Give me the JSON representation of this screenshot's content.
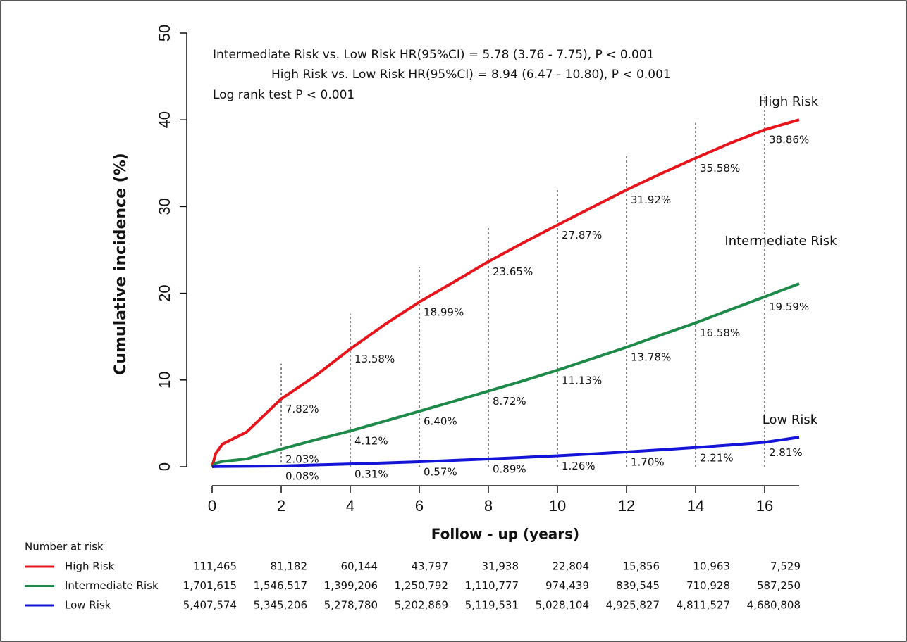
{
  "chart_data": {
    "type": "line",
    "x_label": "Follow - up (years)",
    "y_label": "Cumulative incidence (%)",
    "annotations": [
      "Intermediate Risk vs. Low Risk HR(95%CI) = 5.78 (3.76 - 7.75), P < 0.001",
      "High Risk vs. Low Risk HR(95%CI) = 8.94 (6.47 - 10.80), P < 0.001",
      "Log rank test P < 0.001"
    ],
    "x": [
      0,
      0.1,
      0.3,
      1,
      2,
      3,
      4,
      5,
      6,
      7,
      8,
      9,
      10,
      11,
      12,
      13,
      14,
      15,
      16,
      17
    ],
    "series": [
      {
        "name": "High Risk",
        "color": "#e8141b",
        "values": [
          0,
          1.5,
          2.6,
          4.0,
          7.82,
          10.5,
          13.58,
          16.4,
          18.99,
          21.3,
          23.65,
          25.8,
          27.87,
          29.9,
          31.92,
          33.8,
          35.58,
          37.3,
          38.86,
          40.0
        ],
        "value_labels": [
          null,
          null,
          null,
          null,
          "7.82%",
          null,
          "13.58%",
          null,
          "18.99%",
          null,
          "23.65%",
          null,
          "27.87%",
          null,
          "31.92%",
          null,
          "35.58%",
          null,
          "38.86%",
          null
        ]
      },
      {
        "name": "Intermediate Risk",
        "color": "#1e8a4a",
        "values": [
          0,
          0.4,
          0.6,
          0.9,
          2.03,
          3.1,
          4.12,
          5.25,
          6.4,
          7.55,
          8.72,
          9.9,
          11.13,
          12.45,
          13.78,
          15.2,
          16.58,
          18.1,
          19.59,
          21.1
        ],
        "value_labels": [
          null,
          null,
          null,
          null,
          "2.03%",
          null,
          "4.12%",
          null,
          "6.40%",
          null,
          "8.72%",
          null,
          "11.13%",
          null,
          "13.78%",
          null,
          "16.58%",
          null,
          "19.59%",
          null
        ]
      },
      {
        "name": "Low Risk",
        "color": "#1414d8",
        "values": [
          0,
          0.02,
          0.03,
          0.05,
          0.08,
          0.2,
          0.31,
          0.44,
          0.57,
          0.73,
          0.89,
          1.07,
          1.26,
          1.47,
          1.7,
          1.95,
          2.21,
          2.5,
          2.81,
          3.4
        ],
        "value_labels": [
          null,
          null,
          null,
          null,
          "0.08%",
          null,
          "0.31%",
          null,
          "0.57%",
          null,
          "0.89%",
          null,
          "1.26%",
          null,
          "1.70%",
          null,
          "2.21%",
          null,
          "2.81%",
          null
        ]
      }
    ],
    "xlim": [
      0,
      17
    ],
    "xticks": [
      0,
      2,
      4,
      6,
      8,
      10,
      12,
      14,
      16
    ],
    "ylim": [
      0,
      50
    ],
    "yticks": [
      0,
      10,
      20,
      30,
      40,
      50
    ],
    "number_at_risk": {
      "title": "Number at risk",
      "rows": [
        [
          "111,465",
          "81,182",
          "60,144",
          "43,797",
          "31,938",
          "22,804",
          "15,856",
          "10,963",
          "7,529"
        ],
        [
          "1,701,615",
          "1,546,517",
          "1,399,206",
          "1,250,792",
          "1,110,777",
          "974,439",
          "839,545",
          "710,928",
          "587,250"
        ],
        [
          "5,407,574",
          "5,345,206",
          "5,278,780",
          "5,202,869",
          "5,119,531",
          "5,028,104",
          "4,925,827",
          "4,811,527",
          "4,680,808"
        ]
      ]
    }
  }
}
